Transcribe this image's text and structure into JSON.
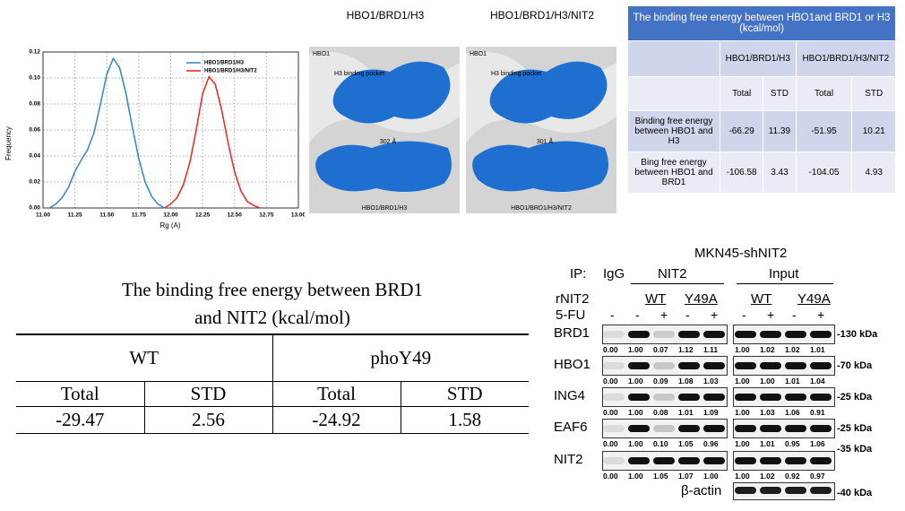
{
  "chart_data": {
    "type": "line",
    "xlabel": "Rg (A)",
    "ylabel": "Frequency",
    "xlim": [
      11,
      13
    ],
    "ylim": [
      0,
      0.12
    ],
    "xticks": [
      {
        "value": 11,
        "label": "11.00"
      },
      {
        "value": 11.25,
        "label": "11.25"
      },
      {
        "value": 11.5,
        "label": "11.50"
      },
      {
        "value": 11.75,
        "label": "11.75"
      },
      {
        "value": 12,
        "label": "12.00"
      },
      {
        "value": 12.25,
        "label": "12.25"
      },
      {
        "value": 12.5,
        "label": "12.50"
      },
      {
        "value": 12.75,
        "label": "12.75"
      },
      {
        "value": 13,
        "label": "13.00"
      }
    ],
    "yticks": [
      {
        "value": 0,
        "label": "0.00"
      },
      0.02,
      0.04,
      0.06,
      0.08,
      {
        "value": 0.1,
        "label": "0.10"
      },
      0.12
    ],
    "grid": true,
    "legend": "upper right",
    "series": [
      {
        "name": "HBO1/BRD1/H3",
        "color": "#3f88c5",
        "x": [
          11.05,
          11.1,
          11.15,
          11.2,
          11.25,
          11.3,
          11.35,
          11.4,
          11.45,
          11.5,
          11.55,
          11.6,
          11.65,
          11.7,
          11.75,
          11.8,
          11.85,
          11.9,
          11.95
        ],
        "values": [
          0,
          0.003,
          0.008,
          0.016,
          0.028,
          0.037,
          0.045,
          0.058,
          0.08,
          0.103,
          0.115,
          0.108,
          0.088,
          0.062,
          0.038,
          0.02,
          0.009,
          0.003,
          0
        ]
      },
      {
        "name": "HBO1/BRD1/H3/NIT2",
        "color": "#e8312f",
        "x": [
          11.95,
          12,
          12.05,
          12.1,
          12.15,
          12.2,
          12.25,
          12.3,
          12.35,
          12.4,
          12.45,
          12.5,
          12.55,
          12.6,
          12.65,
          12.7
        ],
        "values": [
          0,
          0.003,
          0.008,
          0.018,
          0.035,
          0.06,
          0.088,
          0.101,
          0.095,
          0.075,
          0.05,
          0.028,
          0.013,
          0.005,
          0.002,
          0
        ]
      }
    ]
  },
  "structures": [
    {
      "title": "HBO1/BRD1/H3",
      "corner": "HBO1",
      "pocket": "H3 binding pocket",
      "distance": "302 Å",
      "footer": "HBO1/BRD1/H3"
    },
    {
      "title": "HBO1/BRD1/H3/NIT2",
      "corner": "HBO1",
      "pocket": "H3 binding pocket",
      "distance": "301 Å",
      "footer": "HBO1/BRD1/H3/NIT2"
    }
  ],
  "table_top": {
    "title": "The binding free energy between HBO1and BRD1 or H3 (kcal/mol)",
    "groups": [
      "HBO1/BRD1/H3",
      "HBO1/BRD1/H3/NIT2"
    ],
    "subheaders": [
      "Total",
      "STD",
      "Total",
      "STD"
    ],
    "rows": [
      {
        "label": "Binding free energy between HBO1 and H3",
        "values": [
          "-66.29",
          "11.39",
          "-51.95",
          "10.21"
        ]
      },
      {
        "label": "Bing free energy between HBO1 and BRD1",
        "values": [
          "-106.58",
          "3.43",
          "-104.05",
          "4.93"
        ]
      }
    ]
  },
  "table_bottom": {
    "title": "The binding free energy between BRD1 and NIT2 (kcal/mol)",
    "groups": [
      "WT",
      "phoY49"
    ],
    "subheaders": [
      "Total",
      "STD",
      "Total",
      "STD"
    ],
    "values": [
      "-29.47",
      "2.56",
      "-24.92",
      "1.58"
    ]
  },
  "western_blot": {
    "title": "MKN45-shNIT2",
    "ip_label": "IP:",
    "ip_groups": [
      "IgG",
      "NIT2",
      "Input"
    ],
    "rnit2_label": "rNIT2",
    "rnit2_groups": [
      "WT",
      "Y49A",
      "WT",
      "Y49A"
    ],
    "fu_label": "5-FU",
    "ip_fu": [
      "-",
      "-",
      "+",
      "-",
      "+"
    ],
    "input_fu": [
      "-",
      "+",
      "-",
      "+"
    ],
    "rows": [
      {
        "name": "BRD1",
        "ip": [
          "0.00",
          "1.00",
          "0.07",
          "1.12",
          "1.11"
        ],
        "input": [
          "1.00",
          "1.02",
          "1.02",
          "1.01"
        ],
        "marker": "-130 kDa"
      },
      {
        "name": "HBO1",
        "ip": [
          "0.00",
          "1.00",
          "0.09",
          "1.08",
          "1.03"
        ],
        "input": [
          "1.00",
          "1.00",
          "1.01",
          "1.04"
        ],
        "marker": "-70 kDa"
      },
      {
        "name": "ING4",
        "ip": [
          "0.00",
          "1.00",
          "0.08",
          "1.01",
          "1.09"
        ],
        "input": [
          "1.00",
          "1.03",
          "1.06",
          "0.91"
        ],
        "marker": "-25 kDa"
      },
      {
        "name": "EAF6",
        "ip": [
          "0.00",
          "1.00",
          "0.10",
          "1.05",
          "0.96"
        ],
        "input": [
          "1.00",
          "1.01",
          "0.95",
          "1.06"
        ],
        "marker": "-25 kDa"
      },
      {
        "name": "NIT2",
        "ip": [
          "0.00",
          "1.00",
          "1.05",
          "1.07",
          "1.00"
        ],
        "input": [
          "1.00",
          "1.02",
          "0.92",
          "0.97"
        ],
        "marker": "-35 kDa"
      }
    ],
    "loading": {
      "name": "β-actin",
      "marker": "-40 kDa"
    }
  }
}
